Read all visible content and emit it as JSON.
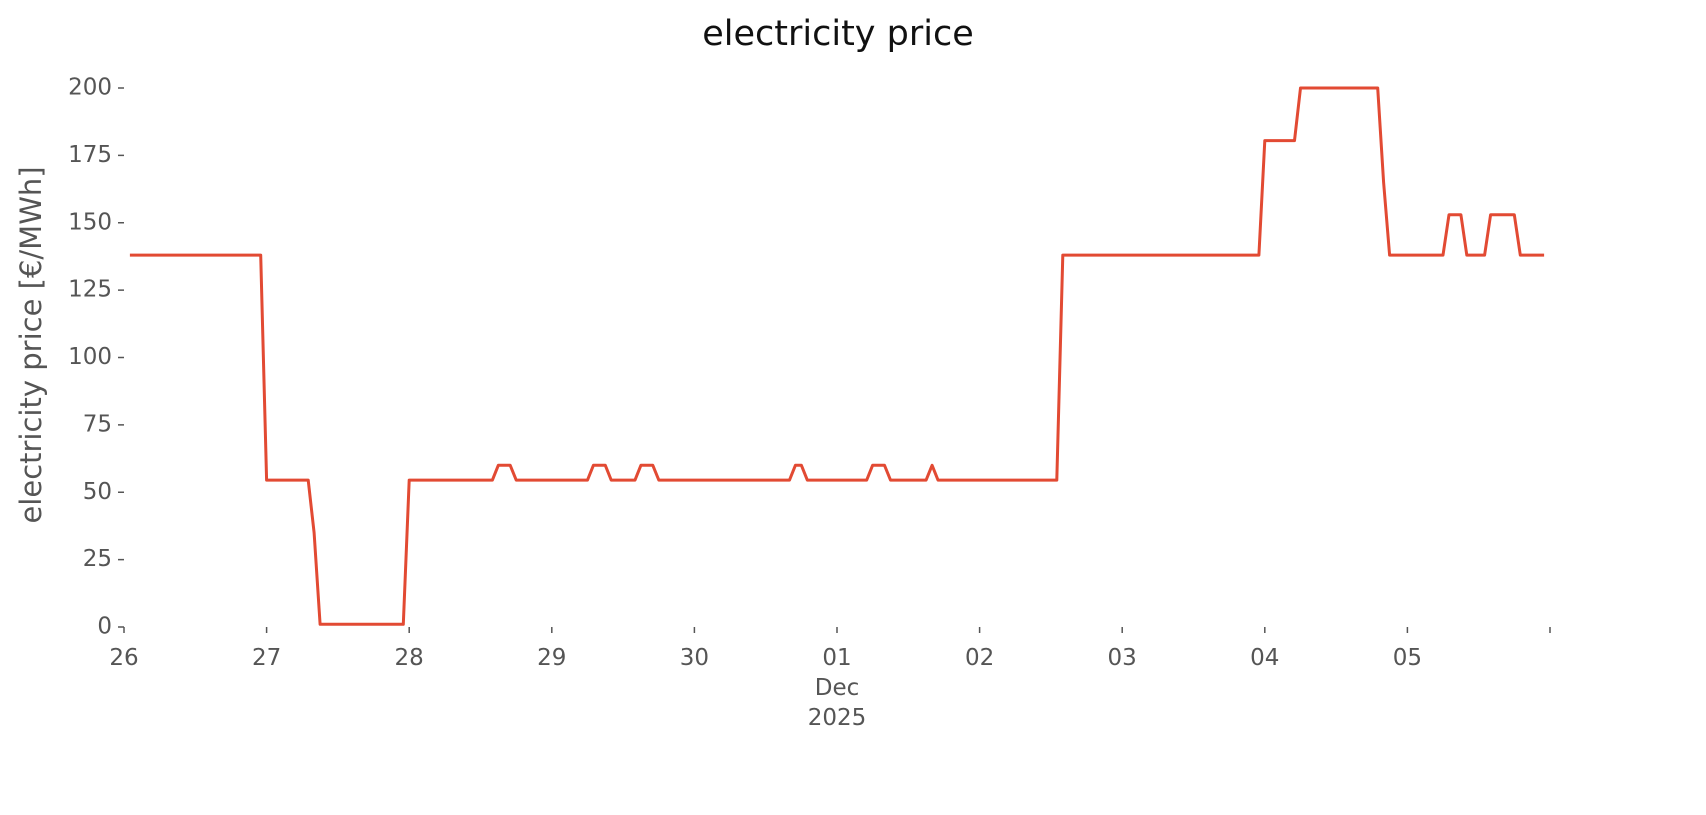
{
  "chart_data": {
    "type": "line",
    "title": "electricity price",
    "y_label": "electricity price [€/MWh]",
    "ylim": [
      0,
      200
    ],
    "yticks": [
      0,
      25,
      50,
      75,
      100,
      125,
      150,
      175,
      200
    ],
    "xlim": [
      "2025-11-26T00:00",
      "2025-12-06T00:00"
    ],
    "xticks": [
      {
        "value": "2025-11-26T00:00",
        "label": "26"
      },
      {
        "value": "2025-11-27T00:00",
        "label": "27"
      },
      {
        "value": "2025-11-28T00:00",
        "label": "28"
      },
      {
        "value": "2025-11-29T00:00",
        "label": "29"
      },
      {
        "value": "2025-11-30T00:00",
        "label": "30"
      },
      {
        "value": "2025-12-01T00:00",
        "label": "01\nDec\n2025"
      },
      {
        "value": "2025-12-02T00:00",
        "label": "02"
      },
      {
        "value": "2025-12-03T00:00",
        "label": "03"
      },
      {
        "value": "2025-12-04T00:00",
        "label": "04"
      },
      {
        "value": "2025-12-05T00:00",
        "label": "05"
      },
      {
        "value": "2025-12-06T00:00",
        "label": null
      }
    ],
    "grid": false,
    "series": [
      {
        "name": "electricity price",
        "color": "#e24a33",
        "x": [
          "2025-11-26T01:00",
          "2025-11-26T23:00",
          "2025-11-27T00:00",
          "2025-11-27T07:00",
          "2025-11-27T08:00",
          "2025-11-27T09:00",
          "2025-11-27T23:00",
          "2025-11-28T00:00",
          "2025-11-28T14:00",
          "2025-11-28T15:00",
          "2025-11-28T17:00",
          "2025-11-28T18:00",
          "2025-11-29T06:00",
          "2025-11-29T07:00",
          "2025-11-29T09:00",
          "2025-11-29T10:00",
          "2025-11-29T14:00",
          "2025-11-29T15:00",
          "2025-11-29T17:00",
          "2025-11-29T18:00",
          "2025-11-30T16:00",
          "2025-11-30T17:00",
          "2025-11-30T18:00",
          "2025-11-30T19:00",
          "2025-12-01T05:00",
          "2025-12-01T06:00",
          "2025-12-01T08:00",
          "2025-12-01T09:00",
          "2025-12-01T15:00",
          "2025-12-01T16:00",
          "2025-12-01T17:00",
          "2025-12-02T13:00",
          "2025-12-02T14:00",
          "2025-12-03T23:00",
          "2025-12-04T00:00",
          "2025-12-04T05:00",
          "2025-12-04T06:00",
          "2025-12-04T19:00",
          "2025-12-04T20:00",
          "2025-12-04T21:00",
          "2025-12-05T06:00",
          "2025-12-05T07:00",
          "2025-12-05T09:00",
          "2025-12-05T10:00",
          "2025-12-05T13:00",
          "2025-12-05T14:00",
          "2025-12-05T18:00",
          "2025-12-05T19:00",
          "2025-12-05T23:00"
        ],
        "values": [
          138,
          138,
          54.5,
          54.5,
          35,
          1,
          1,
          54.5,
          54.5,
          60,
          60,
          54.5,
          54.5,
          60,
          60,
          54.5,
          54.5,
          60,
          60,
          54.5,
          54.5,
          60,
          60,
          54.5,
          54.5,
          60,
          60,
          54.5,
          54.5,
          60,
          54.5,
          54.5,
          138,
          138,
          180.5,
          180.5,
          200,
          200,
          165,
          138,
          138,
          153,
          153,
          138,
          138,
          153,
          153,
          138,
          138
        ]
      }
    ]
  }
}
